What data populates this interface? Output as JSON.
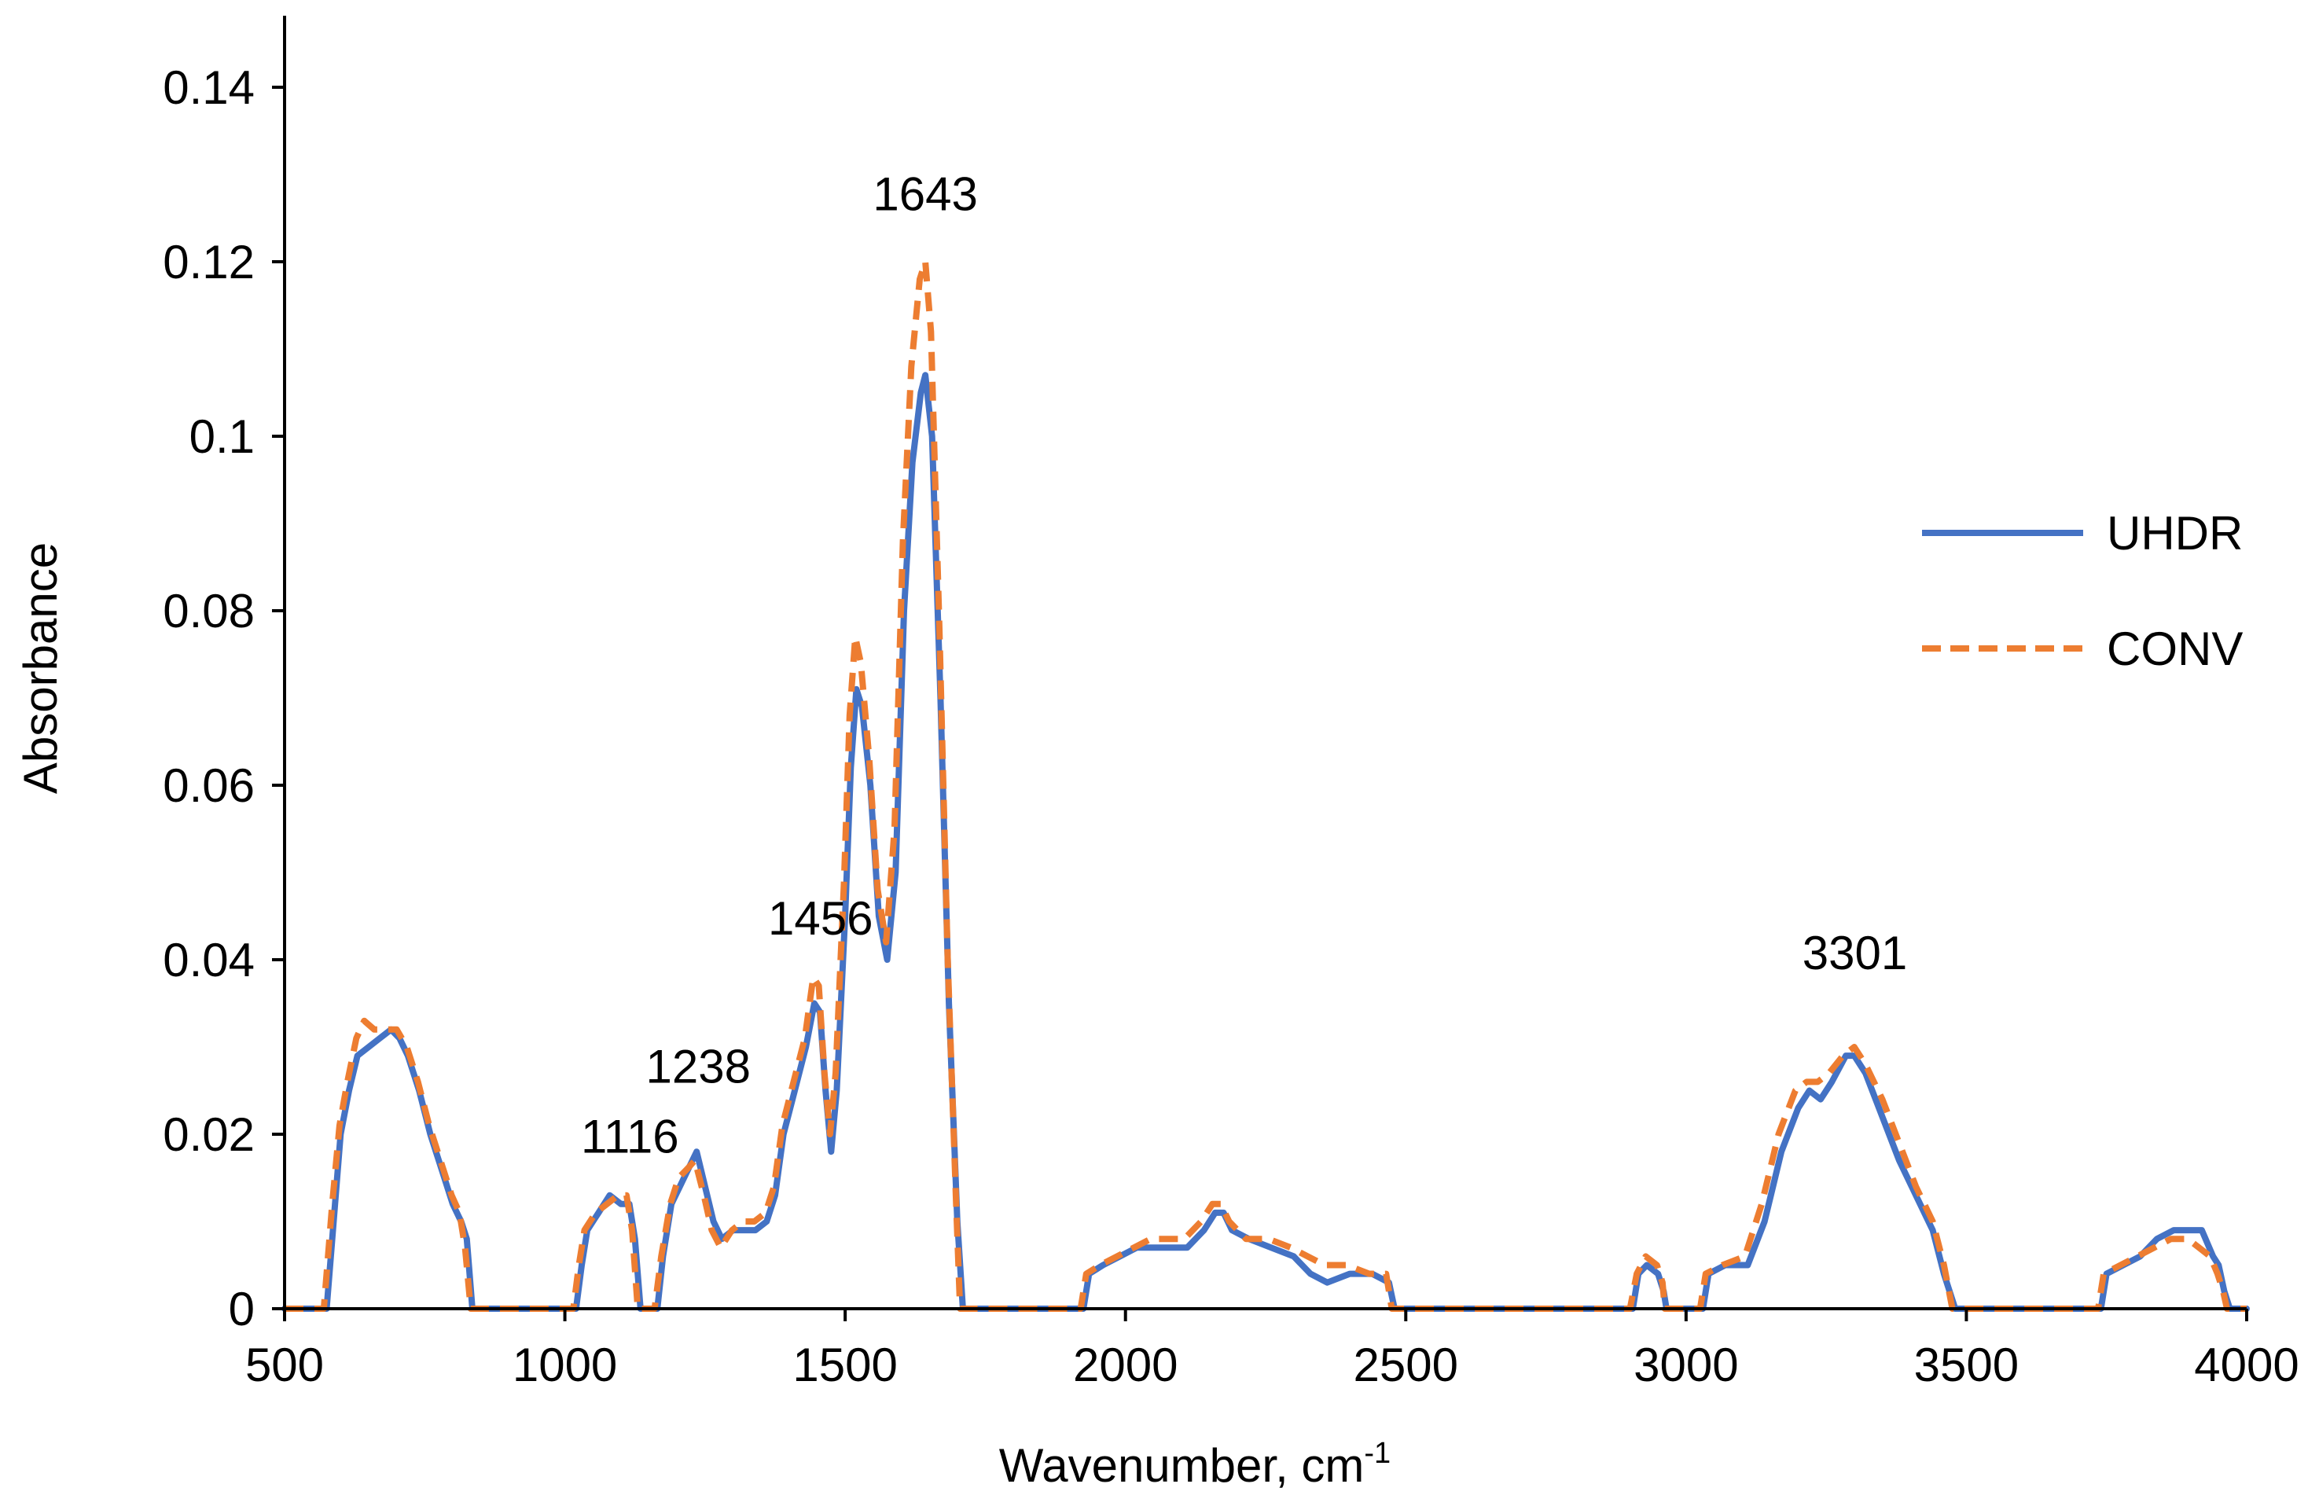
{
  "chart_data": {
    "type": "line",
    "title": "",
    "xlabel": "Wavenumber, cm",
    "xlabel_superscript": "-1",
    "ylabel": "Absorbance",
    "xlim": [
      500,
      4000
    ],
    "ylim": [
      0,
      0.15
    ],
    "xticks": [
      500,
      1000,
      1500,
      2000,
      2500,
      3000,
      3500,
      4000
    ],
    "xtick_labels": [
      "500",
      "1000",
      "1500",
      "2000",
      "2500",
      "3000",
      "3500",
      "4000"
    ],
    "yticks": [
      0,
      0.02,
      0.04,
      0.06,
      0.08,
      0.1,
      0.12,
      0.14
    ],
    "ytick_labels": [
      "0",
      "0.02",
      "0.04",
      "0.06",
      "0.08",
      "0.1",
      "0.12",
      "0.14"
    ],
    "grid": false,
    "legend_position": "right",
    "annotations": [
      {
        "text": "1116",
        "x": 1116,
        "y": 0.017
      },
      {
        "text": "1238",
        "x": 1238,
        "y": 0.025
      },
      {
        "text": "1456",
        "x": 1456,
        "y": 0.042
      },
      {
        "text": "1643",
        "x": 1643,
        "y": 0.125
      },
      {
        "text": "3301",
        "x": 3301,
        "y": 0.038
      }
    ],
    "series": [
      {
        "name": "UHDR",
        "color": "#4472C4",
        "dash": "solid",
        "points": [
          [
            500,
            0
          ],
          [
            575,
            0
          ],
          [
            590,
            0.012
          ],
          [
            600,
            0.02
          ],
          [
            615,
            0.025
          ],
          [
            630,
            0.029
          ],
          [
            650,
            0.03
          ],
          [
            670,
            0.031
          ],
          [
            690,
            0.032
          ],
          [
            705,
            0.031
          ],
          [
            720,
            0.029
          ],
          [
            740,
            0.025
          ],
          [
            760,
            0.02
          ],
          [
            780,
            0.016
          ],
          [
            800,
            0.012
          ],
          [
            815,
            0.01
          ],
          [
            825,
            0.008
          ],
          [
            835,
            0
          ],
          [
            1020,
            0
          ],
          [
            1030,
            0.005
          ],
          [
            1040,
            0.009
          ],
          [
            1060,
            0.011
          ],
          [
            1080,
            0.013
          ],
          [
            1100,
            0.012
          ],
          [
            1115,
            0.012
          ],
          [
            1125,
            0.008
          ],
          [
            1135,
            0
          ],
          [
            1165,
            0
          ],
          [
            1175,
            0.006
          ],
          [
            1190,
            0.012
          ],
          [
            1205,
            0.014
          ],
          [
            1220,
            0.016
          ],
          [
            1235,
            0.018
          ],
          [
            1250,
            0.014
          ],
          [
            1265,
            0.01
          ],
          [
            1280,
            0.008
          ],
          [
            1300,
            0.009
          ],
          [
            1320,
            0.009
          ],
          [
            1340,
            0.009
          ],
          [
            1360,
            0.01
          ],
          [
            1375,
            0.013
          ],
          [
            1390,
            0.02
          ],
          [
            1410,
            0.025
          ],
          [
            1430,
            0.03
          ],
          [
            1445,
            0.035
          ],
          [
            1455,
            0.034
          ],
          [
            1465,
            0.025
          ],
          [
            1475,
            0.018
          ],
          [
            1485,
            0.025
          ],
          [
            1500,
            0.045
          ],
          [
            1510,
            0.062
          ],
          [
            1520,
            0.071
          ],
          [
            1530,
            0.069
          ],
          [
            1545,
            0.06
          ],
          [
            1560,
            0.045
          ],
          [
            1575,
            0.04
          ],
          [
            1590,
            0.05
          ],
          [
            1605,
            0.08
          ],
          [
            1620,
            0.097
          ],
          [
            1635,
            0.105
          ],
          [
            1643,
            0.107
          ],
          [
            1655,
            0.1
          ],
          [
            1670,
            0.07
          ],
          [
            1685,
            0.035
          ],
          [
            1700,
            0.01
          ],
          [
            1710,
            0
          ],
          [
            1925,
            0
          ],
          [
            1935,
            0.004
          ],
          [
            1960,
            0.005
          ],
          [
            1990,
            0.006
          ],
          [
            2020,
            0.007
          ],
          [
            2050,
            0.007
          ],
          [
            2080,
            0.007
          ],
          [
            2110,
            0.007
          ],
          [
            2140,
            0.009
          ],
          [
            2160,
            0.011
          ],
          [
            2175,
            0.011
          ],
          [
            2190,
            0.009
          ],
          [
            2220,
            0.008
          ],
          [
            2260,
            0.007
          ],
          [
            2300,
            0.006
          ],
          [
            2330,
            0.004
          ],
          [
            2360,
            0.003
          ],
          [
            2400,
            0.004
          ],
          [
            2440,
            0.004
          ],
          [
            2470,
            0.003
          ],
          [
            2480,
            0
          ],
          [
            2905,
            0
          ],
          [
            2915,
            0.004
          ],
          [
            2930,
            0.005
          ],
          [
            2950,
            0.004
          ],
          [
            2960,
            0.002
          ],
          [
            2965,
            0
          ],
          [
            3030,
            0
          ],
          [
            3040,
            0.004
          ],
          [
            3070,
            0.005
          ],
          [
            3110,
            0.005
          ],
          [
            3140,
            0.01
          ],
          [
            3170,
            0.018
          ],
          [
            3200,
            0.023
          ],
          [
            3220,
            0.025
          ],
          [
            3240,
            0.024
          ],
          [
            3260,
            0.026
          ],
          [
            3285,
            0.029
          ],
          [
            3300,
            0.029
          ],
          [
            3320,
            0.027
          ],
          [
            3350,
            0.022
          ],
          [
            3380,
            0.017
          ],
          [
            3410,
            0.013
          ],
          [
            3440,
            0.009
          ],
          [
            3460,
            0.004
          ],
          [
            3480,
            0
          ],
          [
            3740,
            0
          ],
          [
            3750,
            0.004
          ],
          [
            3780,
            0.005
          ],
          [
            3810,
            0.006
          ],
          [
            3840,
            0.008
          ],
          [
            3870,
            0.009
          ],
          [
            3900,
            0.009
          ],
          [
            3920,
            0.009
          ],
          [
            3940,
            0.006
          ],
          [
            3950,
            0.005
          ],
          [
            3960,
            0.002
          ],
          [
            3970,
            0
          ],
          [
            4000,
            0
          ]
        ]
      },
      {
        "name": "CONV",
        "color": "#ED7D31",
        "dash": "dashed",
        "points": [
          [
            500,
            0
          ],
          [
            570,
            0
          ],
          [
            585,
            0.012
          ],
          [
            598,
            0.021
          ],
          [
            612,
            0.026
          ],
          [
            628,
            0.031
          ],
          [
            642,
            0.033
          ],
          [
            660,
            0.032
          ],
          [
            680,
            0.032
          ],
          [
            700,
            0.032
          ],
          [
            718,
            0.03
          ],
          [
            738,
            0.026
          ],
          [
            758,
            0.021
          ],
          [
            778,
            0.017
          ],
          [
            798,
            0.013
          ],
          [
            812,
            0.011
          ],
          [
            822,
            0.007
          ],
          [
            832,
            0
          ],
          [
            1015,
            0
          ],
          [
            1025,
            0.005
          ],
          [
            1035,
            0.009
          ],
          [
            1055,
            0.011
          ],
          [
            1075,
            0.012
          ],
          [
            1095,
            0.013
          ],
          [
            1110,
            0.013
          ],
          [
            1120,
            0.009
          ],
          [
            1130,
            0
          ],
          [
            1160,
            0
          ],
          [
            1172,
            0.006
          ],
          [
            1188,
            0.012
          ],
          [
            1203,
            0.015
          ],
          [
            1218,
            0.016
          ],
          [
            1232,
            0.017
          ],
          [
            1248,
            0.013
          ],
          [
            1262,
            0.009
          ],
          [
            1278,
            0.007
          ],
          [
            1298,
            0.009
          ],
          [
            1318,
            0.01
          ],
          [
            1338,
            0.01
          ],
          [
            1358,
            0.011
          ],
          [
            1373,
            0.014
          ],
          [
            1388,
            0.021
          ],
          [
            1408,
            0.026
          ],
          [
            1428,
            0.031
          ],
          [
            1443,
            0.038
          ],
          [
            1453,
            0.037
          ],
          [
            1463,
            0.027
          ],
          [
            1473,
            0.02
          ],
          [
            1483,
            0.027
          ],
          [
            1498,
            0.049
          ],
          [
            1508,
            0.068
          ],
          [
            1518,
            0.077
          ],
          [
            1528,
            0.074
          ],
          [
            1543,
            0.063
          ],
          [
            1558,
            0.048
          ],
          [
            1573,
            0.042
          ],
          [
            1588,
            0.055
          ],
          [
            1603,
            0.088
          ],
          [
            1618,
            0.108
          ],
          [
            1633,
            0.118
          ],
          [
            1643,
            0.12
          ],
          [
            1653,
            0.112
          ],
          [
            1668,
            0.078
          ],
          [
            1683,
            0.04
          ],
          [
            1698,
            0.012
          ],
          [
            1705,
            0
          ],
          [
            1920,
            0
          ],
          [
            1930,
            0.004
          ],
          [
            1955,
            0.005
          ],
          [
            1985,
            0.006
          ],
          [
            2015,
            0.007
          ],
          [
            2045,
            0.008
          ],
          [
            2075,
            0.008
          ],
          [
            2105,
            0.008
          ],
          [
            2135,
            0.01
          ],
          [
            2155,
            0.012
          ],
          [
            2170,
            0.012
          ],
          [
            2185,
            0.01
          ],
          [
            2215,
            0.008
          ],
          [
            2255,
            0.008
          ],
          [
            2295,
            0.007
          ],
          [
            2325,
            0.006
          ],
          [
            2355,
            0.005
          ],
          [
            2395,
            0.005
          ],
          [
            2435,
            0.004
          ],
          [
            2465,
            0.004
          ],
          [
            2475,
            0
          ],
          [
            2900,
            0
          ],
          [
            2912,
            0.004
          ],
          [
            2928,
            0.006
          ],
          [
            2948,
            0.005
          ],
          [
            2958,
            0.003
          ],
          [
            2962,
            0
          ],
          [
            3025,
            0
          ],
          [
            3035,
            0.004
          ],
          [
            3065,
            0.005
          ],
          [
            3105,
            0.006
          ],
          [
            3135,
            0.012
          ],
          [
            3165,
            0.02
          ],
          [
            3195,
            0.025
          ],
          [
            3215,
            0.026
          ],
          [
            3235,
            0.026
          ],
          [
            3255,
            0.027
          ],
          [
            3280,
            0.029
          ],
          [
            3300,
            0.03
          ],
          [
            3320,
            0.028
          ],
          [
            3350,
            0.024
          ],
          [
            3380,
            0.019
          ],
          [
            3410,
            0.014
          ],
          [
            3440,
            0.01
          ],
          [
            3460,
            0.005
          ],
          [
            3475,
            0
          ],
          [
            3735,
            0
          ],
          [
            3745,
            0.004
          ],
          [
            3775,
            0.005
          ],
          [
            3805,
            0.006
          ],
          [
            3835,
            0.007
          ],
          [
            3865,
            0.008
          ],
          [
            3895,
            0.008
          ],
          [
            3915,
            0.007
          ],
          [
            3935,
            0.006
          ],
          [
            3948,
            0.004
          ],
          [
            3958,
            0.002
          ],
          [
            3965,
            0
          ],
          [
            4000,
            0
          ]
        ]
      }
    ]
  }
}
